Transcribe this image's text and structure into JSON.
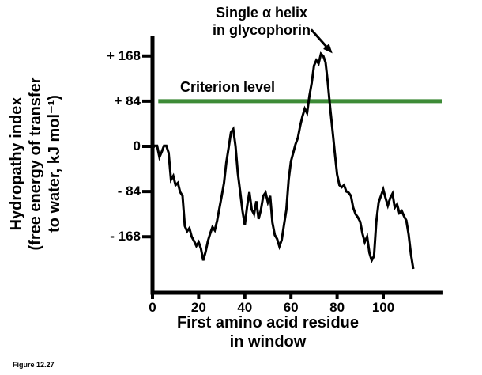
{
  "figure": {
    "caption": "Figure 12.27"
  },
  "chart_data": {
    "type": "line",
    "title": "",
    "xlabel": "First amino acid residue\nin window",
    "ylabel": "Hydropathy index\n(free energy of transfer\nto water, kJ mol⁻¹)",
    "xlim": [
      0,
      126
    ],
    "ylim": [
      -272,
      206
    ],
    "grid": false,
    "legend": "none",
    "x_ticks": {
      "values": [
        0,
        20,
        40,
        60,
        80,
        100
      ],
      "labels": [
        "0",
        "20",
        "40",
        "60",
        "80",
        "100"
      ]
    },
    "y_ticks": {
      "values": [
        168,
        84,
        0,
        -84,
        -168
      ],
      "labels": [
        "+ 168",
        "+ 84",
        "0",
        "- 84",
        "- 168"
      ]
    },
    "criterion": {
      "label": "Criterion level",
      "value": 84,
      "color": "#3d8b37",
      "x_start": 2.5,
      "x_end": 125.5
    },
    "annotation": {
      "text": "Single α helix\nin glycophorin",
      "arrow_target": [
        78,
        170
      ]
    },
    "series": [
      {
        "name": "Hydropathy index of glycophorin",
        "color": "#000000",
        "points": [
          [
            0,
            -4
          ],
          [
            1,
            1
          ],
          [
            2,
            1
          ],
          [
            3,
            -20
          ],
          [
            4,
            -10
          ],
          [
            5,
            1
          ],
          [
            6,
            1
          ],
          [
            7,
            -12
          ],
          [
            8,
            -62
          ],
          [
            9,
            -55
          ],
          [
            10,
            -72
          ],
          [
            11,
            -68
          ],
          [
            12,
            -85
          ],
          [
            13,
            -92
          ],
          [
            14,
            -148
          ],
          [
            15,
            -158
          ],
          [
            16,
            -152
          ],
          [
            17,
            -168
          ],
          [
            18,
            -176
          ],
          [
            19,
            -185
          ],
          [
            20,
            -178
          ],
          [
            21,
            -190
          ],
          [
            22,
            -212
          ],
          [
            23,
            -196
          ],
          [
            24,
            -176
          ],
          [
            25,
            -162
          ],
          [
            26,
            -150
          ],
          [
            27,
            -156
          ],
          [
            28,
            -138
          ],
          [
            29,
            -115
          ],
          [
            30,
            -92
          ],
          [
            31,
            -68
          ],
          [
            32,
            -30
          ],
          [
            33,
            -2
          ],
          [
            34,
            26
          ],
          [
            35,
            32
          ],
          [
            36,
            0
          ],
          [
            37,
            -50
          ],
          [
            38,
            -85
          ],
          [
            39,
            -120
          ],
          [
            40,
            -146
          ],
          [
            41,
            -112
          ],
          [
            42,
            -85
          ],
          [
            43,
            -118
          ],
          [
            44,
            -126
          ],
          [
            45,
            -102
          ],
          [
            46,
            -135
          ],
          [
            47,
            -118
          ],
          [
            48,
            -92
          ],
          [
            49,
            -86
          ],
          [
            50,
            -104
          ],
          [
            51,
            -92
          ],
          [
            52,
            -142
          ],
          [
            53,
            -165
          ],
          [
            54,
            -172
          ],
          [
            55,
            -186
          ],
          [
            56,
            -174
          ],
          [
            57,
            -146
          ],
          [
            58,
            -118
          ],
          [
            59,
            -62
          ],
          [
            60,
            -28
          ],
          [
            61,
            -12
          ],
          [
            62,
            4
          ],
          [
            63,
            16
          ],
          [
            64,
            38
          ],
          [
            65,
            56
          ],
          [
            66,
            70
          ],
          [
            67,
            62
          ],
          [
            68,
            94
          ],
          [
            69,
            118
          ],
          [
            70,
            150
          ],
          [
            71,
            160
          ],
          [
            72,
            154
          ],
          [
            73,
            172
          ],
          [
            74,
            168
          ],
          [
            75,
            156
          ],
          [
            76,
            118
          ],
          [
            77,
            72
          ],
          [
            78,
            30
          ],
          [
            79,
            -12
          ],
          [
            80,
            -52
          ],
          [
            81,
            -72
          ],
          [
            82,
            -76
          ],
          [
            83,
            -72
          ],
          [
            84,
            -84
          ],
          [
            85,
            -86
          ],
          [
            86,
            -92
          ],
          [
            87,
            -114
          ],
          [
            88,
            -126
          ],
          [
            89,
            -132
          ],
          [
            90,
            -140
          ],
          [
            91,
            -162
          ],
          [
            92,
            -178
          ],
          [
            93,
            -168
          ],
          [
            94,
            -198
          ],
          [
            95,
            -212
          ],
          [
            96,
            -204
          ],
          [
            97,
            -140
          ],
          [
            98,
            -104
          ],
          [
            99,
            -92
          ],
          [
            100,
            -80
          ],
          [
            101,
            -96
          ],
          [
            102,
            -110
          ],
          [
            103,
            -96
          ],
          [
            104,
            -88
          ],
          [
            105,
            -114
          ],
          [
            106,
            -108
          ],
          [
            107,
            -124
          ],
          [
            108,
            -120
          ],
          [
            109,
            -130
          ],
          [
            110,
            -138
          ],
          [
            111,
            -164
          ],
          [
            112,
            -200
          ],
          [
            113,
            -228
          ]
        ]
      }
    ]
  }
}
